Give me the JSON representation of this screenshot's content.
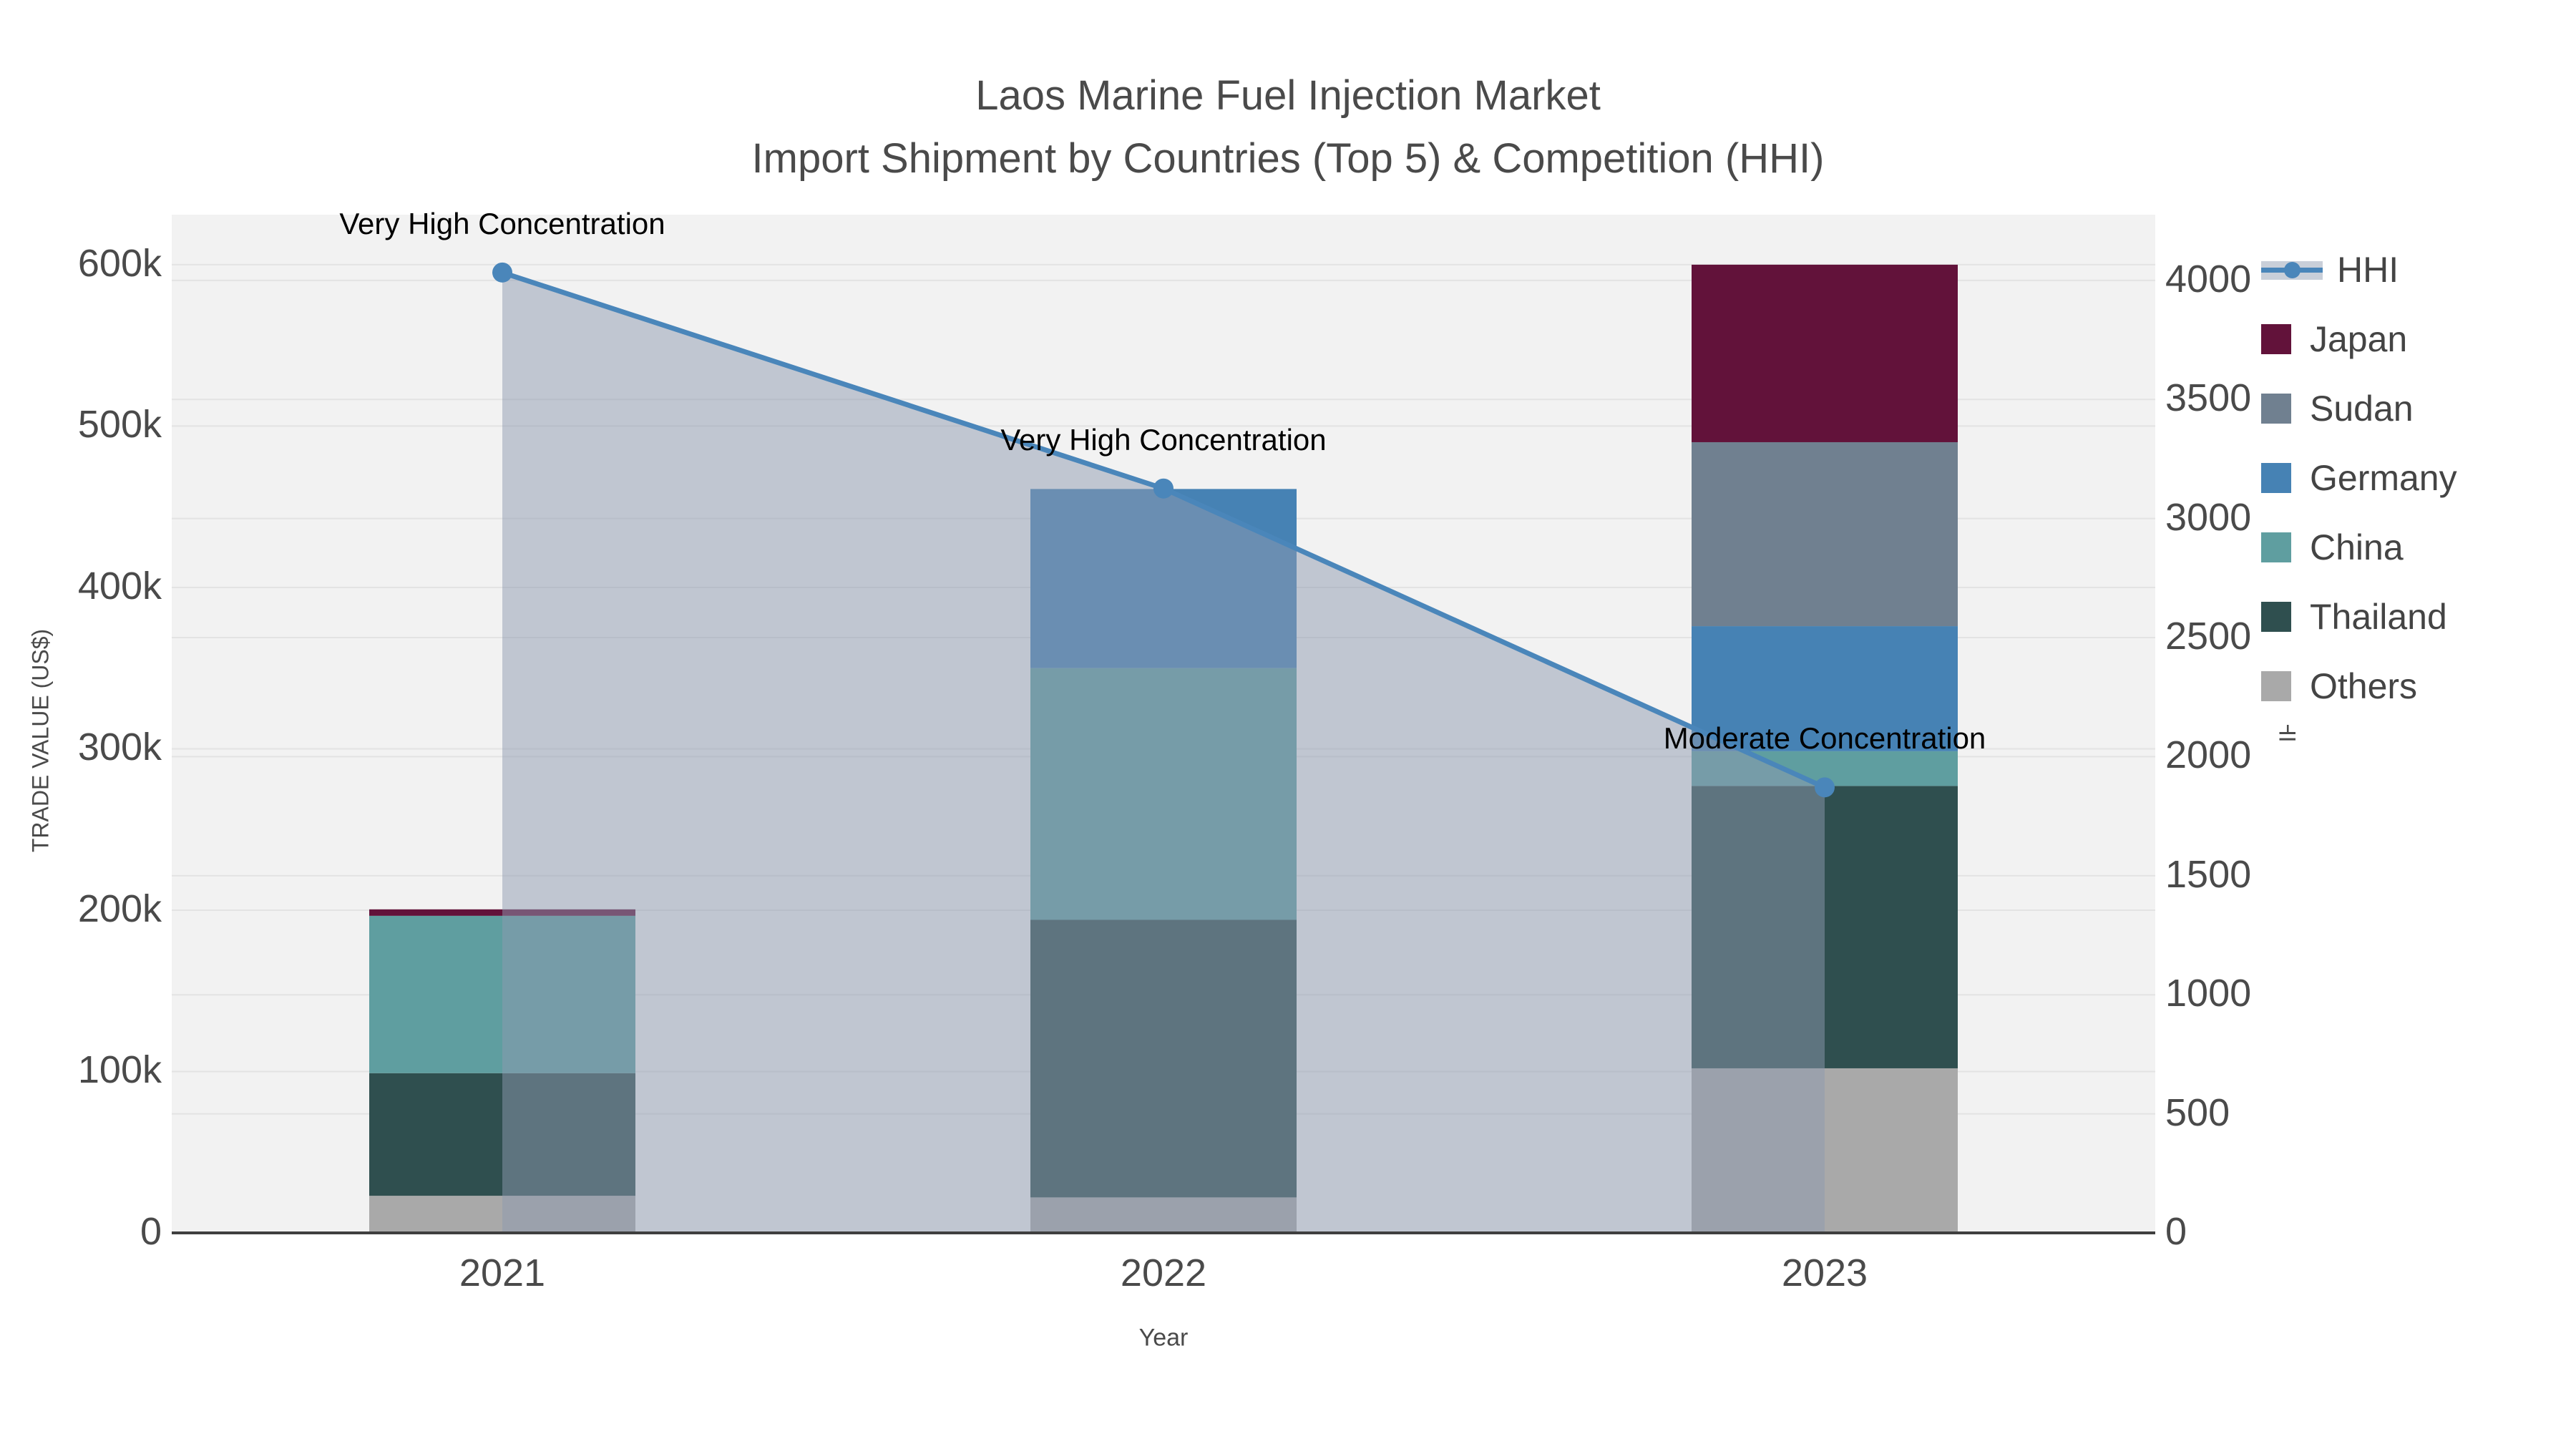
{
  "chart_data": {
    "type": "bar+line",
    "title_line1": "Laos Marine Fuel Injection Market",
    "title_line2": "Import Shipment by Countries (Top 5) & Competition (HHI)",
    "xlabel": "Year",
    "ylabel_left": "TRADE VALUE (US$)",
    "ylabel_right": "HHI",
    "x_categories": [
      "2021",
      "2022",
      "2023"
    ],
    "left_axis": {
      "max": 631000,
      "ticks": [
        {
          "label": "0",
          "value": 0
        },
        {
          "label": "100k",
          "value": 100000
        },
        {
          "label": "200k",
          "value": 200000
        },
        {
          "label": "300k",
          "value": 300000
        },
        {
          "label": "400k",
          "value": 400000
        },
        {
          "label": "500k",
          "value": 500000
        },
        {
          "label": "600k",
          "value": 600000
        }
      ]
    },
    "right_axis": {
      "max": 4276,
      "ticks": [
        {
          "label": "0",
          "value": 0
        },
        {
          "label": "500",
          "value": 500
        },
        {
          "label": "1000",
          "value": 1000
        },
        {
          "label": "1500",
          "value": 1500
        },
        {
          "label": "2000",
          "value": 2000
        },
        {
          "label": "2500",
          "value": 2500
        },
        {
          "label": "3000",
          "value": 3000
        },
        {
          "label": "3500",
          "value": 3500
        },
        {
          "label": "4000",
          "value": 4000
        }
      ]
    },
    "series": [
      {
        "name": "Others",
        "color": "#a9a9a9",
        "values": [
          23000,
          22000,
          102000
        ]
      },
      {
        "name": "Thailand",
        "color": "#2f4f4f",
        "values": [
          76000,
          172000,
          175000
        ]
      },
      {
        "name": "China",
        "color": "#5f9ea0",
        "values": [
          97500,
          156000,
          21500
        ]
      },
      {
        "name": "Germany",
        "color": "#4682b4",
        "values": [
          0,
          111000,
          77500
        ]
      },
      {
        "name": "Sudan",
        "color": "#708090",
        "values": [
          0,
          0,
          114000
        ]
      },
      {
        "name": "Japan",
        "color": "#62123a",
        "values": [
          4000,
          0,
          110000
        ]
      }
    ],
    "hhi": {
      "name": "HHI",
      "values": [
        4033,
        3126,
        1871
      ],
      "line_color": "#4a86ba",
      "area_color": "rgba(141,153,175,0.5)",
      "legend_band_color": "#c9cfd9"
    },
    "annotations": [
      {
        "text": "Very High Concentration",
        "point": 0
      },
      {
        "text": "Very High Concentration",
        "point": 1
      },
      {
        "text": "Moderate Concentration",
        "point": 2
      }
    ],
    "legend_order": [
      "HHI",
      "Japan",
      "Sudan",
      "Germany",
      "China",
      "Thailand",
      "Others"
    ],
    "colors": {
      "plot_background": "#f2f2f2",
      "gridline": "#e3e3e3",
      "axis_line": "#3f3f3f",
      "tick_text": "#4a4a4a",
      "title_text": "#4a4a4a"
    }
  }
}
